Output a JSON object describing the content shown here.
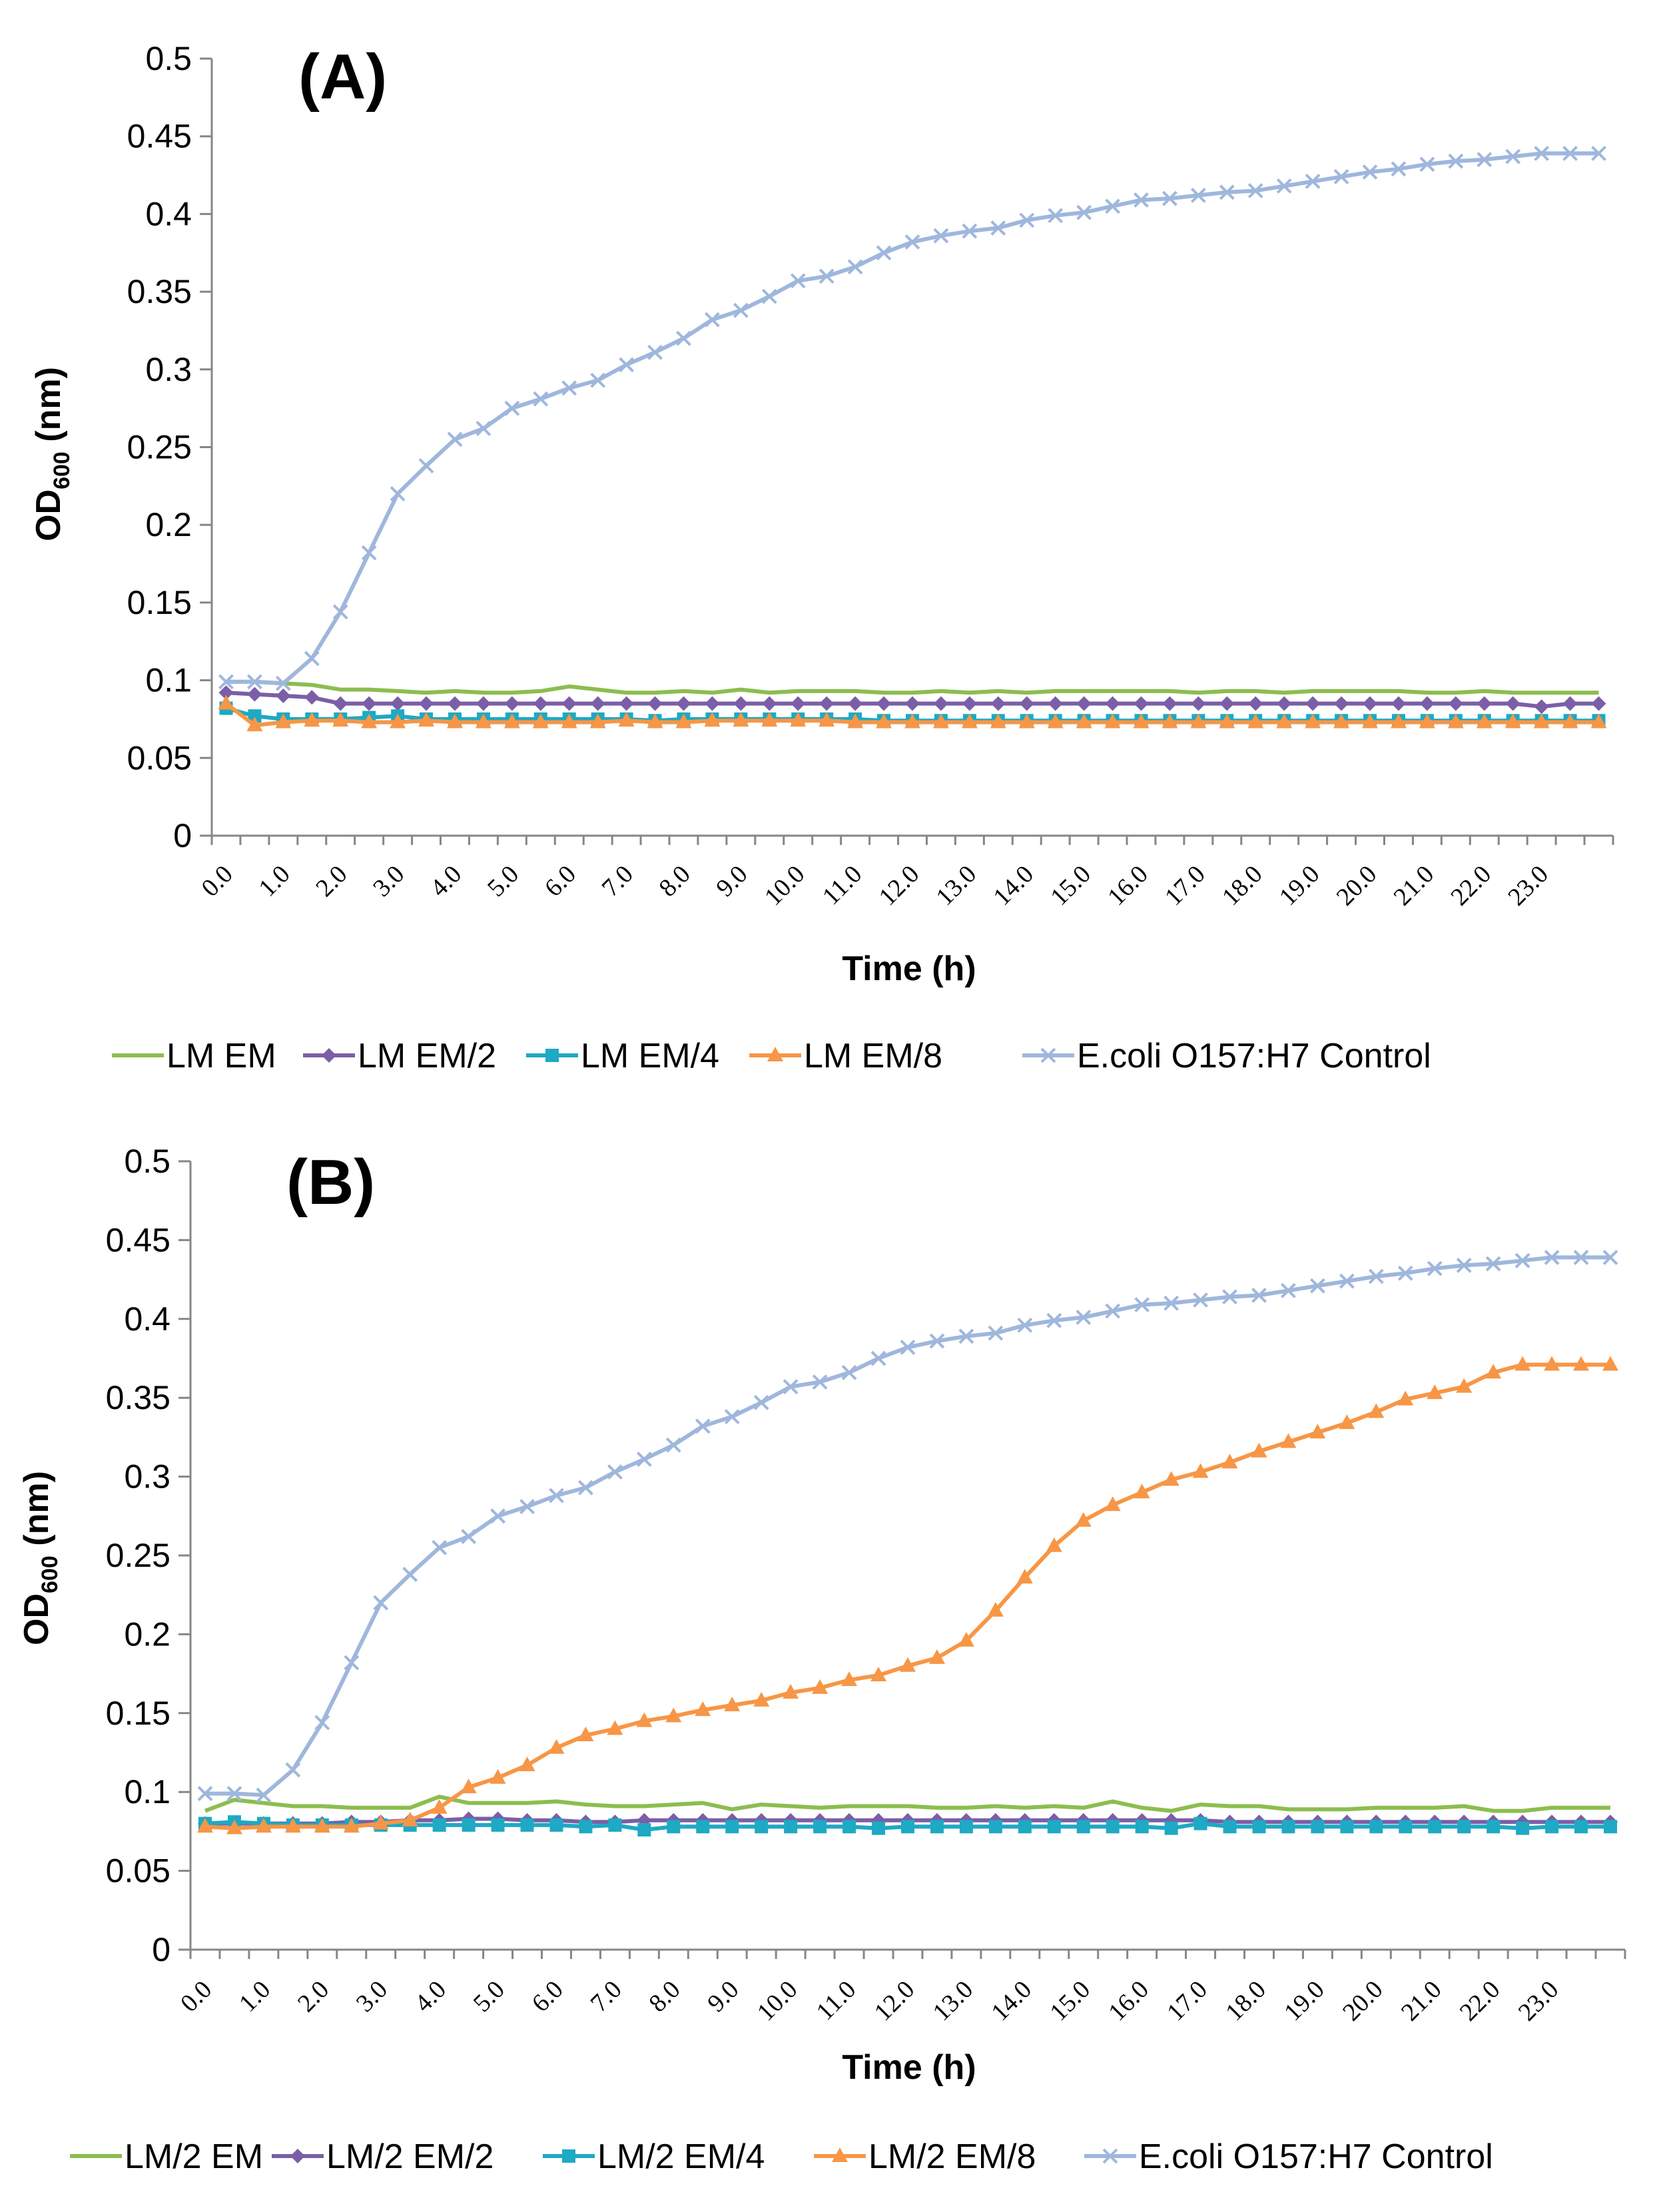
{
  "chart_data": [
    {
      "type": "line",
      "panel_label": "(A)",
      "xlabel": "Time (h)",
      "ylabel": "OD",
      "ylabel_sub": "600",
      "ylabel_suffix": " (nm)",
      "ylim": [
        0,
        0.5
      ],
      "yticks": [
        "0",
        "0.05",
        "0.1",
        "0.15",
        "0.2",
        "0.25",
        "0.3",
        "0.35",
        "0.4",
        "0.45",
        "0.5"
      ],
      "xticks": [
        "0.0",
        "1.0",
        "2.0",
        "3.0",
        "4.0",
        "5.0",
        "6.0",
        "7.0",
        "8.0",
        "9.0",
        "10.0",
        "11.0",
        "12.0",
        "13.0",
        "14.0",
        "15.0",
        "16.0",
        "17.0",
        "18.0",
        "19.0",
        "20.0",
        "21.0",
        "22.0",
        "23.0"
      ],
      "legend_position": "bottom",
      "series": [
        {
          "name": "LM EM",
          "color": "#8cbd4f",
          "marker": "none",
          "values": [
            0.099,
            0.099,
            0.098,
            0.097,
            0.094,
            0.094,
            0.093,
            0.092,
            0.093,
            0.092,
            0.092,
            0.093,
            0.096,
            0.094,
            0.092,
            0.092,
            0.093,
            0.092,
            0.094,
            0.092,
            0.093,
            0.093,
            0.093,
            0.092,
            0.092,
            0.093,
            0.092,
            0.093,
            0.092,
            0.093,
            0.093,
            0.093,
            0.093,
            0.093,
            0.092,
            0.093,
            0.093,
            0.092,
            0.093,
            0.093,
            0.093,
            0.093,
            0.092,
            0.092,
            0.093,
            0.092,
            0.092,
            0.092,
            0.092
          ]
        },
        {
          "name": "LM EM/2",
          "color": "#7b5ea7",
          "marker": "diamond",
          "values": [
            0.092,
            0.091,
            0.09,
            0.089,
            0.085,
            0.085,
            0.085,
            0.085,
            0.085,
            0.085,
            0.085,
            0.085,
            0.085,
            0.085,
            0.085,
            0.085,
            0.085,
            0.085,
            0.085,
            0.085,
            0.085,
            0.085,
            0.085,
            0.085,
            0.085,
            0.085,
            0.085,
            0.085,
            0.085,
            0.085,
            0.085,
            0.085,
            0.085,
            0.085,
            0.085,
            0.085,
            0.085,
            0.085,
            0.085,
            0.085,
            0.085,
            0.085,
            0.085,
            0.085,
            0.085,
            0.085,
            0.083,
            0.085,
            0.085
          ]
        },
        {
          "name": "LM EM/4",
          "color": "#1ea9c4",
          "marker": "square",
          "values": [
            0.082,
            0.077,
            0.075,
            0.075,
            0.075,
            0.076,
            0.077,
            0.075,
            0.075,
            0.075,
            0.075,
            0.075,
            0.075,
            0.075,
            0.075,
            0.074,
            0.075,
            0.075,
            0.075,
            0.075,
            0.075,
            0.075,
            0.075,
            0.074,
            0.074,
            0.074,
            0.074,
            0.074,
            0.074,
            0.074,
            0.074,
            0.074,
            0.074,
            0.074,
            0.074,
            0.074,
            0.074,
            0.074,
            0.074,
            0.074,
            0.074,
            0.074,
            0.074,
            0.074,
            0.074,
            0.074,
            0.074,
            0.074,
            0.074
          ]
        },
        {
          "name": "LM EM/8",
          "color": "#f79646",
          "marker": "triangle",
          "values": [
            0.085,
            0.071,
            0.073,
            0.074,
            0.074,
            0.073,
            0.073,
            0.074,
            0.073,
            0.073,
            0.073,
            0.073,
            0.073,
            0.073,
            0.074,
            0.073,
            0.073,
            0.074,
            0.074,
            0.074,
            0.074,
            0.074,
            0.073,
            0.073,
            0.073,
            0.073,
            0.073,
            0.073,
            0.073,
            0.073,
            0.073,
            0.073,
            0.073,
            0.073,
            0.073,
            0.073,
            0.073,
            0.073,
            0.073,
            0.073,
            0.073,
            0.073,
            0.073,
            0.073,
            0.073,
            0.073,
            0.073,
            0.073,
            0.073
          ]
        },
        {
          "name": "E.coli O157:H7 Control",
          "color": "#9fb7dc",
          "marker": "x",
          "values": [
            0.099,
            0.099,
            0.098,
            0.114,
            0.144,
            0.182,
            0.22,
            0.238,
            0.255,
            0.262,
            0.275,
            0.281,
            0.288,
            0.293,
            0.303,
            0.311,
            0.32,
            0.332,
            0.338,
            0.347,
            0.357,
            0.36,
            0.366,
            0.375,
            0.382,
            0.386,
            0.389,
            0.391,
            0.396,
            0.399,
            0.401,
            0.405,
            0.409,
            0.41,
            0.412,
            0.414,
            0.415,
            0.418,
            0.421,
            0.424,
            0.427,
            0.429,
            0.432,
            0.434,
            0.435,
            0.437,
            0.439,
            0.439,
            0.439
          ]
        }
      ]
    },
    {
      "type": "line",
      "panel_label": "(B)",
      "xlabel": "Time (h)",
      "ylabel": "OD",
      "ylabel_sub": "600",
      "ylabel_suffix": " (nm)",
      "ylim": [
        0,
        0.5
      ],
      "yticks": [
        "0",
        "0.05",
        "0.1",
        "0.15",
        "0.2",
        "0.25",
        "0.3",
        "0.35",
        "0.4",
        "0.45",
        "0.5"
      ],
      "xticks": [
        "0.0",
        "1.0",
        "2.0",
        "3.0",
        "4.0",
        "5.0",
        "6.0",
        "7.0",
        "8.0",
        "9.0",
        "10.0",
        "11.0",
        "12.0",
        "13.0",
        "14.0",
        "15.0",
        "16.0",
        "17.0",
        "18.0",
        "19.0",
        "20.0",
        "21.0",
        "22.0",
        "23.0"
      ],
      "legend_position": "bottom",
      "series": [
        {
          "name": "LM/2 EM",
          "color": "#8cbd4f",
          "marker": "none",
          "values": [
            0.088,
            0.095,
            0.093,
            0.091,
            0.091,
            0.09,
            0.09,
            0.09,
            0.097,
            0.093,
            0.093,
            0.093,
            0.094,
            0.092,
            0.091,
            0.091,
            0.092,
            0.093,
            0.089,
            0.092,
            0.091,
            0.09,
            0.091,
            0.091,
            0.091,
            0.09,
            0.09,
            0.091,
            0.09,
            0.091,
            0.09,
            0.094,
            0.09,
            0.088,
            0.092,
            0.091,
            0.091,
            0.089,
            0.089,
            0.089,
            0.09,
            0.09,
            0.09,
            0.091,
            0.088,
            0.088,
            0.09,
            0.09,
            0.09
          ]
        },
        {
          "name": "LM/2 EM/2",
          "color": "#7b5ea7",
          "marker": "diamond",
          "values": [
            0.08,
            0.08,
            0.08,
            0.08,
            0.08,
            0.081,
            0.081,
            0.082,
            0.082,
            0.083,
            0.083,
            0.082,
            0.082,
            0.081,
            0.081,
            0.082,
            0.082,
            0.082,
            0.082,
            0.082,
            0.082,
            0.082,
            0.082,
            0.082,
            0.082,
            0.082,
            0.082,
            0.082,
            0.082,
            0.082,
            0.082,
            0.082,
            0.082,
            0.082,
            0.082,
            0.081,
            0.081,
            0.081,
            0.081,
            0.081,
            0.081,
            0.081,
            0.081,
            0.081,
            0.081,
            0.081,
            0.081,
            0.081,
            0.081
          ]
        },
        {
          "name": "LM/2 EM/4",
          "color": "#1ea9c4",
          "marker": "square",
          "values": [
            0.08,
            0.081,
            0.08,
            0.079,
            0.079,
            0.079,
            0.079,
            0.079,
            0.079,
            0.079,
            0.079,
            0.079,
            0.079,
            0.078,
            0.079,
            0.076,
            0.078,
            0.078,
            0.078,
            0.078,
            0.078,
            0.078,
            0.078,
            0.077,
            0.078,
            0.078,
            0.078,
            0.078,
            0.078,
            0.078,
            0.078,
            0.078,
            0.078,
            0.077,
            0.08,
            0.078,
            0.078,
            0.078,
            0.078,
            0.078,
            0.078,
            0.078,
            0.078,
            0.078,
            0.078,
            0.077,
            0.078,
            0.078,
            0.078
          ]
        },
        {
          "name": "LM/2 EM/8",
          "color": "#f79646",
          "marker": "triangle",
          "values": [
            0.078,
            0.077,
            0.078,
            0.078,
            0.078,
            0.078,
            0.08,
            0.082,
            0.09,
            0.103,
            0.109,
            0.117,
            0.128,
            0.136,
            0.14,
            0.145,
            0.148,
            0.152,
            0.155,
            0.158,
            0.163,
            0.166,
            0.171,
            0.174,
            0.18,
            0.185,
            0.196,
            0.215,
            0.236,
            0.256,
            0.272,
            0.282,
            0.29,
            0.298,
            0.303,
            0.309,
            0.316,
            0.322,
            0.328,
            0.334,
            0.341,
            0.349,
            0.353,
            0.357,
            0.366,
            0.371,
            0.371,
            0.371,
            0.371
          ]
        },
        {
          "name": "E.coli O157:H7 Control",
          "color": "#9fb7dc",
          "marker": "x",
          "values": [
            0.099,
            0.099,
            0.098,
            0.114,
            0.144,
            0.182,
            0.22,
            0.238,
            0.255,
            0.262,
            0.275,
            0.281,
            0.288,
            0.293,
            0.303,
            0.311,
            0.32,
            0.332,
            0.338,
            0.347,
            0.357,
            0.36,
            0.366,
            0.375,
            0.382,
            0.386,
            0.389,
            0.391,
            0.396,
            0.399,
            0.401,
            0.405,
            0.409,
            0.41,
            0.412,
            0.414,
            0.415,
            0.418,
            0.421,
            0.424,
            0.427,
            0.429,
            0.432,
            0.434,
            0.435,
            0.437,
            0.439,
            0.439,
            0.439
          ]
        }
      ]
    }
  ]
}
